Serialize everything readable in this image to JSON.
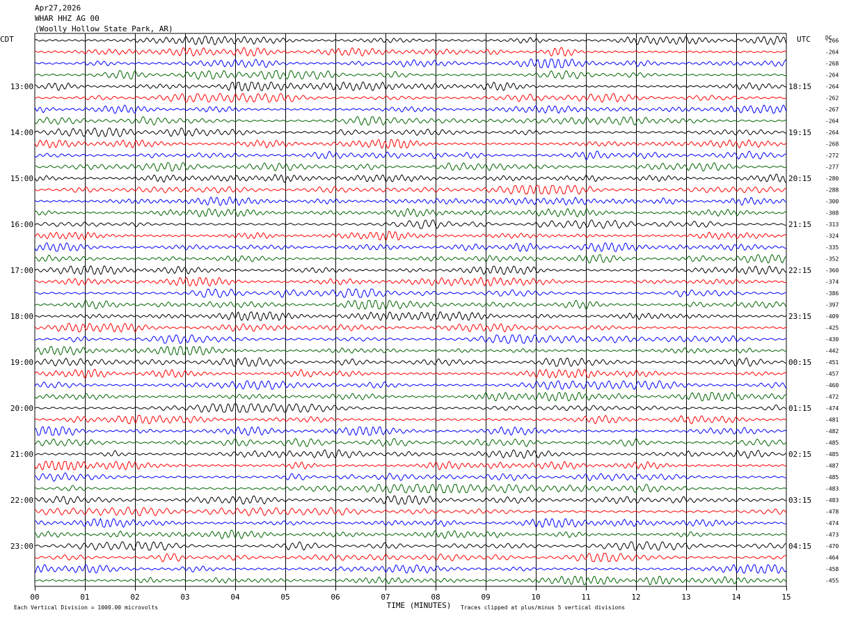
{
  "header": {
    "date": "Apr27,2026",
    "station": "WHAR HHZ AG 00",
    "location": "(Woolly Hollow State Park, AR)"
  },
  "colors": {
    "trace_cycle": [
      "#000000",
      "#ff0000",
      "#0000ff",
      "#006400"
    ],
    "grid": "#000000",
    "background": "#ffffff"
  },
  "chart_data": {
    "type": "line",
    "left_axis_title": "CDT",
    "right_axis_title": "UTC",
    "dc_title": "DC",
    "xlabel": "TIME (MINUTES)",
    "x_ticks": [
      "00",
      "01",
      "02",
      "03",
      "04",
      "05",
      "06",
      "07",
      "08",
      "09",
      "10",
      "11",
      "12",
      "13",
      "14",
      "15"
    ],
    "xlim": [
      0,
      15
    ],
    "grid": true,
    "cdt_hour_labels": [
      "13:00",
      "14:00",
      "15:00",
      "16:00",
      "17:00",
      "18:00",
      "19:00",
      "20:00",
      "21:00",
      "22:00",
      "23:00"
    ],
    "utc_hour_labels": [
      "18:15",
      "19:15",
      "20:15",
      "21:15",
      "22:15",
      "23:15",
      "00:15",
      "01:15",
      "02:15",
      "03:15",
      "04:15"
    ],
    "dc_offsets": [
      "-266",
      "-264",
      "-268",
      "-264",
      "-264",
      "-262",
      "-267",
      "-264",
      "-264",
      "-268",
      "-272",
      "-277",
      "-280",
      "-288",
      "-300",
      "-308",
      "-313",
      "-324",
      "-335",
      "-352",
      "-360",
      "-374",
      "-386",
      "-397",
      "-409",
      "-425",
      "-430",
      "-442",
      "-451",
      "-457",
      "-460",
      "-472",
      "-474",
      "-481",
      "-482",
      "-485",
      "-485",
      "-487",
      "-485",
      "-483",
      "-483",
      "-478",
      "-474",
      "-473",
      "-470",
      "-464",
      "-458",
      "-455"
    ],
    "footer_left": "Each Vertical Division = 1000.00 microvolts",
    "footer_right": "Traces clipped at plus/minus 5 vertical divisions"
  }
}
